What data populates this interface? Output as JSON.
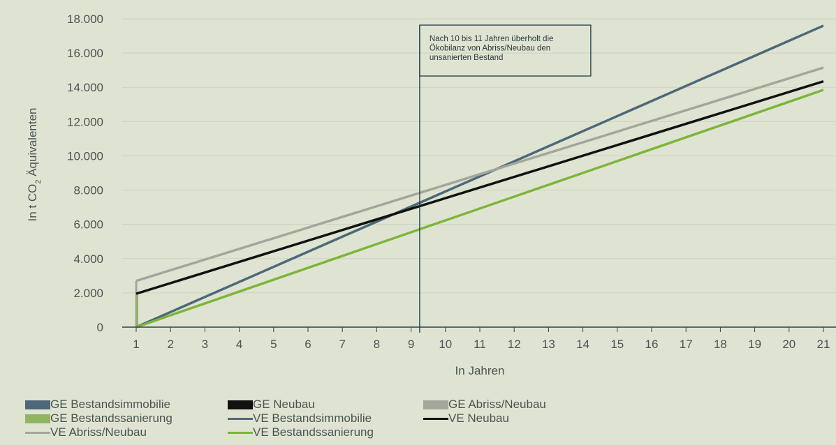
{
  "chart_data": {
    "type": "line",
    "xlabel": "In Jahren",
    "ylabel_main": "In t CO",
    "ylabel_sub": "2",
    "ylabel_rest": " Äquivalenten",
    "ylim": [
      0,
      18000
    ],
    "yticks": [
      0,
      2000,
      4000,
      6000,
      8000,
      10000,
      12000,
      14000,
      16000,
      18000
    ],
    "ytick_labels": [
      "0",
      "2.000",
      "4.000",
      "6.000",
      "8.000",
      "10.000",
      "12.000",
      "14.000",
      "16.000",
      "18.000"
    ],
    "x": [
      1,
      2,
      3,
      4,
      5,
      6,
      7,
      8,
      9,
      10,
      11,
      12,
      13,
      14,
      15,
      16,
      17,
      18,
      19,
      20,
      21
    ],
    "grid": "horizontal",
    "series": [
      {
        "name": "VE Bestandsimmobilie",
        "color": "#4d6878",
        "start": [
          1,
          0
        ],
        "end": [
          21,
          17600
        ]
      },
      {
        "name": "VE Abriss/Neubau",
        "color": "#a3a69b",
        "start": [
          1,
          2700
        ],
        "end": [
          21,
          15150
        ]
      },
      {
        "name": "VE Neubau",
        "color": "#111111",
        "start": [
          1,
          1950
        ],
        "end": [
          21,
          14350
        ]
      },
      {
        "name": "VE Bestandssanierung",
        "color": "#7db53a",
        "start": [
          1,
          0
        ],
        "end": [
          21,
          13850
        ]
      }
    ],
    "bars_at_x1": [
      {
        "name": "GE Abriss/Neubau",
        "color": "#a3a69b",
        "value": 2700
      },
      {
        "name": "GE Bestandssanierung",
        "color": "#8fb562",
        "value": 1950
      }
    ],
    "marker_x": 9.25,
    "annotation": "Nach 10 bis 11 Jahren überholt die Ökobilanz von Abriss/Neubau den unsanierten Bestand",
    "annotation_lines": [
      "Nach 10 bis 11 Jahren überholt die",
      "Ökobilanz von Abriss/Neubau den",
      "unsanierten Bestand"
    ]
  },
  "legend": [
    {
      "label": "GE Bestandsimmobilie",
      "kind": "box",
      "color": "#4d6878"
    },
    {
      "label": "GE Neubau",
      "kind": "box",
      "color": "#111111"
    },
    {
      "label": "GE Abriss/Neubau",
      "kind": "box",
      "color": "#a3a69b"
    },
    {
      "label": "GE Bestandssanierung",
      "kind": "box",
      "color": "#8fb562"
    },
    {
      "label": "VE Bestandsimmobilie",
      "kind": "line",
      "color": "#4d6878"
    },
    {
      "label": "VE Neubau",
      "kind": "line",
      "color": "#111111"
    },
    {
      "label": "VE Abriss/Neubau",
      "kind": "line",
      "color": "#a3a69b"
    },
    {
      "label": "VE Bestandssanierung",
      "kind": "line",
      "color": "#7db53a"
    }
  ]
}
